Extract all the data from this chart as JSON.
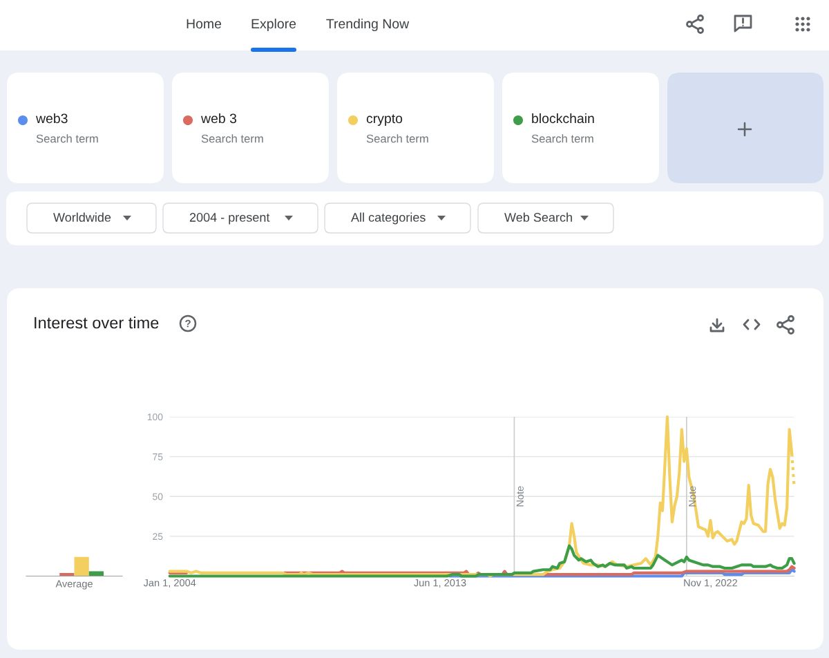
{
  "chart_data": [
    {
      "type": "bar",
      "title": "Interest over time",
      "categories": [
        "Average"
      ],
      "ylim": [
        0,
        100
      ],
      "tick_labels": "x",
      "series": [
        {
          "color": "#5b8def",
          "values": [
            0
          ]
        },
        {
          "color": "#db6a5f",
          "values": [
            2
          ]
        },
        {
          "color": "#f2cf5f",
          "values": [
            12
          ]
        },
        {
          "color": "#3e9e48",
          "values": [
            3
          ]
        }
      ]
    },
    {
      "type": "line",
      "annotations": [
        "Home",
        "Explore",
        "Trending Now",
        "Search term",
        "Search term",
        "Search term",
        "Search term",
        "Worldwide",
        "2004 - present",
        "All categories",
        "Web Search"
      ],
      "legend": "top",
      "grid": "y",
      "xlim": [
        "2004-01",
        "2025-10"
      ],
      "xticks": [
        {
          "value": "2004-01-01",
          "label": "Jan 1, 2004"
        },
        {
          "value": "2013-06-01",
          "label": "Jun 1, 2013"
        },
        {
          "value": "2022-11-01",
          "label": "Nov 1, 2022"
        }
      ],
      "ylim": [
        0,
        100
      ],
      "yticks": [
        25,
        50,
        75,
        100
      ],
      "ref_lines": [
        {
          "axis": "x",
          "value": "2016-01-01",
          "label": "Note",
          "color": "#cccccc"
        },
        {
          "axis": "x",
          "value": "2022-01-01",
          "label": "Note",
          "color": "#cccccc"
        }
      ],
      "series": [
        {
          "name": "web3",
          "color": "#5b8def",
          "x": [
            "2013-10",
            "2021-11",
            "2021-12",
            "2023-04",
            "2023-05",
            "2023-12",
            "2024-01",
            "2025-08",
            "2025-09",
            "2025-10"
          ],
          "values": [
            0,
            0,
            2,
            2,
            1,
            1,
            2,
            2,
            4,
            3
          ]
        },
        {
          "name": "web 3",
          "color": "#db6a5f",
          "x": [
            "2004-01",
            "2004-08",
            "2006-01",
            "2008-01",
            "2009-12",
            "2010-01",
            "2010-02",
            "2014-04",
            "2014-05",
            "2014-06",
            "2014-09",
            "2014-10",
            "2014-11",
            "2015-08",
            "2015-09",
            "2015-10",
            "2020-02",
            "2020-03",
            "2021-11",
            "2022-01",
            "2025-07",
            "2025-08",
            "2025-09",
            "2025-10"
          ],
          "values": [
            2,
            2,
            null,
            2,
            2,
            3,
            2,
            2,
            3,
            1,
            1,
            2,
            1,
            1,
            3,
            1,
            1,
            2,
            2,
            3,
            3,
            4,
            6,
            5
          ]
        },
        {
          "name": "crypto",
          "color": "#f2cf5f",
          "x": [
            "2004-01",
            "2004-08",
            "2004-10",
            "2004-12",
            "2005-02",
            "2007-12",
            "2008-02",
            "2008-07",
            "2008-08",
            "2008-09",
            "2008-11",
            "2009-01",
            "2015-02",
            "2015-03",
            "2015-04",
            "2017-01",
            "2017-03",
            "2017-05",
            "2017-08",
            "2017-10",
            "2017-12",
            "2018-01",
            "2018-02",
            "2018-03",
            "2018-05",
            "2018-06",
            "2018-09",
            "2018-12",
            "2019-03",
            "2019-06",
            "2019-08",
            "2019-12",
            "2020-03",
            "2020-06",
            "2020-08",
            "2020-10",
            "2020-12",
            "2021-01",
            "2021-02",
            "2021-03",
            "2021-05",
            "2021-06",
            "2021-07",
            "2021-08",
            "2021-09",
            "2021-10",
            "2021-11",
            "2021-12",
            "2022-01",
            "2022-02",
            "2022-04",
            "2022-06",
            "2022-09",
            "2022-10",
            "2022-11",
            "2022-12",
            "2023-01",
            "2023-02",
            "2023-04",
            "2023-06",
            "2023-08",
            "2023-09",
            "2023-10",
            "2023-12",
            "2024-01",
            "2024-02",
            "2024-03",
            "2024-04",
            "2024-05",
            "2024-07",
            "2024-08",
            "2024-09",
            "2024-10",
            "2024-11",
            "2024-12",
            "2025-01",
            "2025-02",
            "2025-04",
            "2025-05",
            "2025-06",
            "2025-07",
            "2025-08",
            "2025-09"
          ],
          "values": [
            3,
            3,
            2,
            3,
            2,
            2,
            1,
            1,
            2,
            1,
            2,
            1,
            1,
            0,
            1,
            1,
            3,
            4,
            5,
            9,
            19,
            33,
            25,
            15,
            10,
            8,
            7,
            7,
            6,
            9,
            7,
            6,
            7,
            8,
            11,
            7,
            12,
            25,
            46,
            41,
            100,
            62,
            34,
            44,
            50,
            65,
            92,
            72,
            80,
            62,
            51,
            31,
            29,
            25,
            35,
            24,
            27,
            28,
            25,
            22,
            23,
            20,
            22,
            34,
            33,
            36,
            57,
            38,
            33,
            32,
            30,
            28,
            28,
            58,
            67,
            62,
            48,
            30,
            33,
            32,
            43,
            92,
            77
          ]
        },
        {
          "color": "#f2cf5f",
          "line_style": "dotted",
          "x": [
            "2025-09",
            "2025-10"
          ],
          "values": [
            77,
            56
          ]
        },
        {
          "name": "blockchain",
          "color": "#3e9e48",
          "x": [
            "2004-01",
            "2013-09",
            "2013-11",
            "2014-02",
            "2014-03",
            "2014-09",
            "2014-10",
            "2015-12",
            "2016-01",
            "2016-08",
            "2016-09",
            "2017-01",
            "2017-04",
            "2017-05",
            "2017-07",
            "2017-08",
            "2017-10",
            "2017-12",
            "2018-01",
            "2018-02",
            "2018-04",
            "2018-05",
            "2018-07",
            "2018-09",
            "2018-10",
            "2018-12",
            "2019-02",
            "2019-03",
            "2019-05",
            "2019-07",
            "2019-11",
            "2019-12",
            "2020-02",
            "2020-03",
            "2020-10",
            "2020-11",
            "2021-01",
            "2021-04",
            "2021-07",
            "2021-11",
            "2021-12",
            "2022-01",
            "2022-02",
            "2022-04",
            "2022-08",
            "2022-10",
            "2022-12",
            "2023-03",
            "2023-05",
            "2023-08",
            "2023-10",
            "2023-12",
            "2024-04",
            "2024-05",
            "2024-10",
            "2024-12",
            "2025-01",
            "2025-03",
            "2025-05",
            "2025-07",
            "2025-08",
            "2025-09",
            "2025-10"
          ],
          "values": [
            0,
            0,
            1,
            1,
            0,
            0,
            1,
            1,
            2,
            2,
            3,
            4,
            4,
            6,
            5,
            8,
            9,
            19,
            17,
            13,
            10,
            11,
            9,
            10,
            8,
            6,
            7,
            6,
            8,
            7,
            7,
            5,
            6,
            5,
            5,
            7,
            13,
            10,
            7,
            10,
            9,
            12,
            10,
            9,
            7,
            7,
            6,
            6,
            5,
            5,
            6,
            7,
            7,
            6,
            6,
            7,
            6,
            5,
            5,
            7,
            11,
            11,
            8
          ]
        }
      ]
    }
  ]
}
